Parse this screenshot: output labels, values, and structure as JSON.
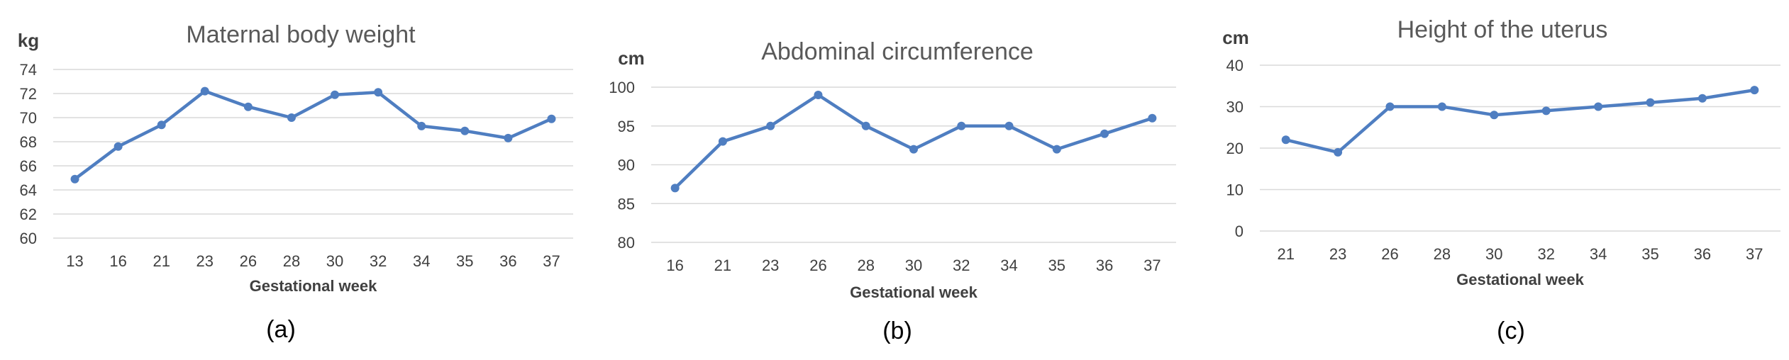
{
  "chart_data": [
    {
      "type": "line",
      "title": "Maternal body weight",
      "ylabel": "kg",
      "xlabel": "Gestational week",
      "caption": "(a)",
      "categories": [
        "13",
        "16",
        "21",
        "23",
        "26",
        "28",
        "30",
        "32",
        "34",
        "35",
        "36",
        "37"
      ],
      "series": [
        {
          "values": [
            64.9,
            67.6,
            69.4,
            72.2,
            70.9,
            70.0,
            71.9,
            72.1,
            69.3,
            68.9,
            68.3,
            69.9
          ]
        }
      ],
      "ylim": [
        60,
        74
      ],
      "yticks": [
        "60",
        "62",
        "64",
        "66",
        "68",
        "70",
        "72",
        "74"
      ],
      "grid": true,
      "legend": "none",
      "line_color": "#4f7ec1"
    },
    {
      "type": "line",
      "title": "Abdominal circumference",
      "ylabel": "cm",
      "xlabel": "Gestational week",
      "caption": "(b)",
      "categories": [
        "16",
        "21",
        "23",
        "26",
        "28",
        "30",
        "32",
        "34",
        "35",
        "36",
        "37"
      ],
      "series": [
        {
          "values": [
            87,
            93,
            95,
            99,
            95,
            92,
            95,
            95,
            92,
            94,
            96
          ]
        }
      ],
      "ylim": [
        80,
        100
      ],
      "yticks": [
        "80",
        "85",
        "90",
        "95",
        "100"
      ],
      "grid": true,
      "legend": "none",
      "line_color": "#4f7ec1"
    },
    {
      "type": "line",
      "title": "Height of the uterus",
      "ylabel": "cm",
      "xlabel": "Gestational week",
      "caption": "(c)",
      "categories": [
        "21",
        "23",
        "26",
        "28",
        "30",
        "32",
        "34",
        "35",
        "36",
        "37"
      ],
      "series": [
        {
          "values": [
            22,
            19,
            30,
            30,
            28,
            29,
            30,
            31,
            32,
            34
          ]
        }
      ],
      "ylim": [
        0,
        40
      ],
      "yticks": [
        "0",
        "10",
        "20",
        "30",
        "40"
      ],
      "grid": true,
      "legend": "none",
      "line_color": "#4f7ec1"
    }
  ],
  "colors": {
    "grid": "#d9d9d9",
    "axis": "#d9d9d9",
    "series": "#4f7ec1"
  }
}
